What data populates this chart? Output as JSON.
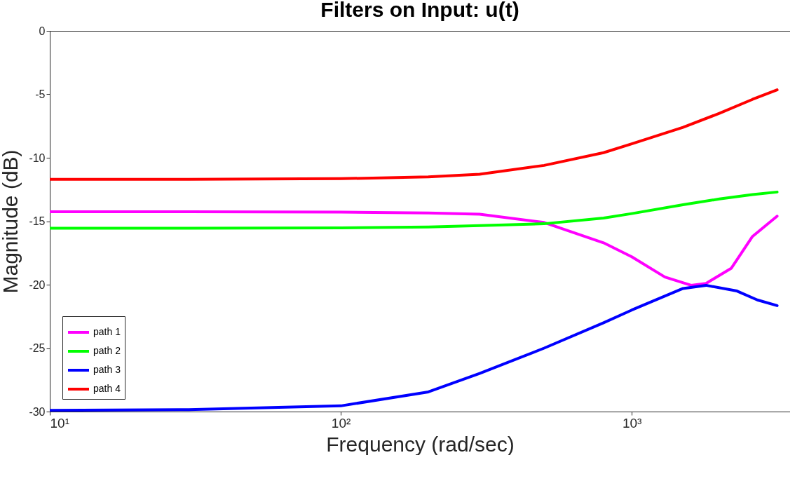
{
  "chart_data": {
    "type": "line",
    "title": "Filters on Input: u(t)",
    "xlabel": "Frequency (rad/sec)",
    "ylabel": "Magnitude (dB)",
    "log": "x",
    "legend": "bottom left",
    "xlim": [
      10,
      3500
    ],
    "ylim": [
      -30,
      0
    ],
    "xticks": [
      {
        "value": 10,
        "label": "10¹"
      },
      {
        "value": 100,
        "label": "10²"
      },
      {
        "value": 1000,
        "label": "10³"
      }
    ],
    "yticks": [
      -30,
      -25,
      -20,
      -15,
      -10,
      -5,
      0
    ],
    "series": [
      {
        "name": "path 1",
        "color": "#ff00ff",
        "x": [
          10,
          30,
          100,
          200,
          300,
          500,
          800,
          1000,
          1300,
          1600,
          1800,
          2200,
          2600,
          3160
        ],
        "values": [
          -14.25,
          -14.25,
          -14.28,
          -14.35,
          -14.45,
          -15.1,
          -16.7,
          -17.8,
          -19.4,
          -20.05,
          -19.9,
          -18.7,
          -16.2,
          -14.6
        ]
      },
      {
        "name": "path 2",
        "color": "#00ff00",
        "x": [
          10,
          30,
          100,
          200,
          300,
          500,
          800,
          1000,
          1500,
          2000,
          2600,
          3160
        ],
        "values": [
          -15.55,
          -15.55,
          -15.52,
          -15.45,
          -15.35,
          -15.2,
          -14.75,
          -14.4,
          -13.7,
          -13.25,
          -12.9,
          -12.7
        ]
      },
      {
        "name": "path 3",
        "color": "#0000ff",
        "x": [
          10,
          30,
          100,
          200,
          300,
          500,
          800,
          1000,
          1500,
          1800,
          2300,
          2700,
          3160
        ],
        "values": [
          -29.9,
          -29.85,
          -29.55,
          -28.45,
          -27,
          -25,
          -23,
          -22,
          -20.3,
          -20.05,
          -20.5,
          -21.2,
          -21.65
        ]
      },
      {
        "name": "path 4",
        "color": "#ff0000",
        "x": [
          10,
          30,
          100,
          200,
          300,
          500,
          800,
          1000,
          1500,
          2000,
          2600,
          3160
        ],
        "values": [
          -11.7,
          -11.7,
          -11.65,
          -11.5,
          -11.3,
          -10.6,
          -9.6,
          -8.9,
          -7.6,
          -6.5,
          -5.4,
          -4.65
        ]
      }
    ]
  }
}
